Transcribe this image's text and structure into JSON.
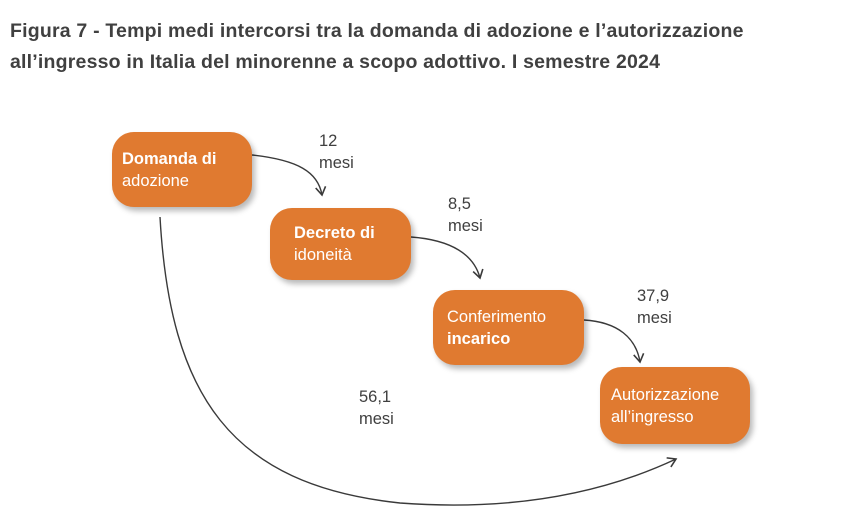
{
  "title": {
    "line1": "Figura 7 - Tempi medi intercorsi tra la domanda di adozione e l’autorizzazione",
    "line2": "all’ingresso in Italia del minorenne a scopo adottivo. I semestre 2024"
  },
  "nodes": [
    {
      "id": "domanda",
      "line1": "Domanda di",
      "line2": "adozione"
    },
    {
      "id": "decreto",
      "line1": "Decreto di",
      "line2": "idoneità"
    },
    {
      "id": "conferimento",
      "line1": "Conferimento",
      "line2": "incarico"
    },
    {
      "id": "autorizzazione",
      "line1": "Autorizzazione",
      "line2": "all’ingresso"
    }
  ],
  "durations": [
    {
      "value": "12",
      "unit": "mesi"
    },
    {
      "value": "8,5",
      "unit": "mesi"
    },
    {
      "value": "37,9",
      "unit": "mesi"
    },
    {
      "value": "56,1",
      "unit": "mesi"
    }
  ],
  "colors": {
    "node_fill": "#e07a30",
    "node_text": "#ffffff",
    "label_text": "#404040",
    "arrow": "#3a3a3a"
  }
}
